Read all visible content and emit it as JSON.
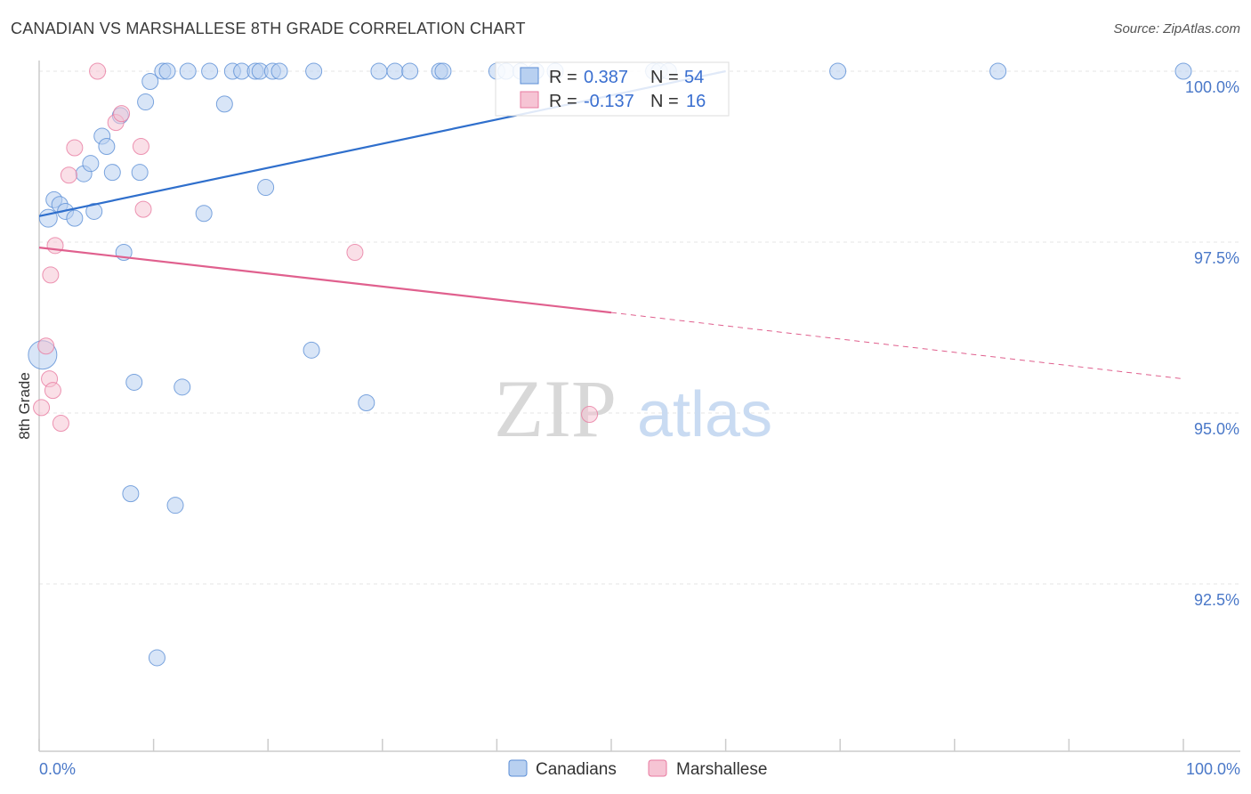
{
  "header": {
    "title": "CANADIAN VS MARSHALLESE 8TH GRADE CORRELATION CHART",
    "source": "Source: ZipAtlas.com"
  },
  "colors": {
    "blue": "#5b8ed6",
    "blue_fill": "#b8d0f0",
    "pink": "#e87aa0",
    "pink_fill": "#f6c4d4",
    "axis_text": "#4a78c8"
  },
  "legend": {
    "r_label": "R =",
    "n_label": "N =",
    "rows": [
      {
        "r": "0.387",
        "n": "54"
      },
      {
        "r": "-0.137",
        "n": "16"
      }
    ]
  },
  "bottom_legend": [
    "Canadians",
    "Marshallese"
  ],
  "watermark": {
    "zip": "ZIP",
    "atlas": "atlas"
  },
  "chart_data": {
    "type": "scatter",
    "title": "CANADIAN VS MARSHALLESE 8TH GRADE CORRELATION CHART",
    "xlabel": "",
    "ylabel": "8th Grade",
    "xlim": [
      0,
      100
    ],
    "ylim": [
      90.2,
      100.2
    ],
    "x_tick_labels": [
      "0.0%",
      "100.0%"
    ],
    "y_ticks": [
      92.5,
      95.0,
      97.5,
      100.0
    ],
    "y_tick_labels": [
      "92.5%",
      "95.0%",
      "97.5%",
      "100.0%"
    ],
    "series": [
      {
        "name": "Canadians",
        "R": 0.387,
        "N": 54,
        "trend": {
          "x0": 0,
          "y0": 97.88,
          "x1": 60,
          "y1": 100.0
        },
        "points": [
          [
            0.3,
            95.85,
            16
          ],
          [
            0.8,
            97.85,
            10
          ],
          [
            1.3,
            98.12,
            9
          ],
          [
            1.8,
            98.05,
            9
          ],
          [
            2.3,
            97.95,
            9
          ],
          [
            3.1,
            97.85,
            9
          ],
          [
            3.9,
            98.5,
            9
          ],
          [
            4.5,
            98.65,
            9
          ],
          [
            4.8,
            97.95,
            9
          ],
          [
            5.5,
            99.05,
            9
          ],
          [
            5.9,
            98.9,
            9
          ],
          [
            6.4,
            98.52,
            9
          ],
          [
            7.1,
            99.35,
            9
          ],
          [
            7.4,
            97.35,
            9
          ],
          [
            8.0,
            93.82,
            9
          ],
          [
            8.3,
            95.45,
            9
          ],
          [
            8.8,
            98.52,
            9
          ],
          [
            9.3,
            99.55,
            9
          ],
          [
            9.7,
            99.85,
            9
          ],
          [
            10.3,
            91.42,
            9
          ],
          [
            10.8,
            100.0,
            9
          ],
          [
            11.2,
            100.0,
            9
          ],
          [
            11.9,
            93.65,
            9
          ],
          [
            12.5,
            95.38,
            9
          ],
          [
            13.0,
            100.0,
            9
          ],
          [
            14.4,
            97.92,
            9
          ],
          [
            14.9,
            100.0,
            9
          ],
          [
            16.2,
            99.52,
            9
          ],
          [
            16.9,
            100.0,
            9
          ],
          [
            17.7,
            100.0,
            9
          ],
          [
            18.9,
            100.0,
            9
          ],
          [
            19.3,
            100.0,
            9
          ],
          [
            19.8,
            98.3,
            9
          ],
          [
            20.4,
            100.0,
            9
          ],
          [
            21.0,
            100.0,
            9
          ],
          [
            23.8,
            95.92,
            9
          ],
          [
            24.0,
            100.0,
            9
          ],
          [
            28.6,
            95.15,
            9
          ],
          [
            29.7,
            100.0,
            9
          ],
          [
            31.1,
            100.0,
            9
          ],
          [
            32.4,
            100.0,
            9
          ],
          [
            35.0,
            100.0,
            9
          ],
          [
            35.3,
            100.0,
            9
          ],
          [
            40.0,
            100.0,
            9
          ],
          [
            40.8,
            100.0,
            9
          ],
          [
            42.1,
            100.0,
            9
          ],
          [
            43.4,
            100.0,
            9
          ],
          [
            45.1,
            100.0,
            9
          ],
          [
            53.7,
            100.0,
            9
          ],
          [
            54.2,
            100.0,
            9
          ],
          [
            55.0,
            100.0,
            9
          ],
          [
            69.8,
            100.0,
            9
          ],
          [
            83.8,
            100.0,
            9
          ],
          [
            100.0,
            100.0,
            9
          ]
        ]
      },
      {
        "name": "Marshallese",
        "R": -0.137,
        "N": 16,
        "trend": {
          "x0": 0,
          "y0": 97.42,
          "x1": 50,
          "y1": 96.47,
          "dash_to_x": 100,
          "dash_to_y": 95.5
        },
        "points": [
          [
            0.2,
            95.08,
            9
          ],
          [
            0.6,
            95.98,
            9
          ],
          [
            0.9,
            95.5,
            9
          ],
          [
            1.0,
            97.02,
            9
          ],
          [
            1.2,
            95.33,
            9
          ],
          [
            1.4,
            97.45,
            9
          ],
          [
            1.9,
            94.85,
            9
          ],
          [
            2.6,
            98.48,
            9
          ],
          [
            3.1,
            98.88,
            9
          ],
          [
            5.1,
            100.0,
            9
          ],
          [
            6.7,
            99.25,
            9
          ],
          [
            7.2,
            99.38,
            9
          ],
          [
            8.9,
            98.9,
            9
          ],
          [
            9.1,
            97.98,
            9
          ],
          [
            27.6,
            97.35,
            9
          ],
          [
            48.1,
            94.98,
            9
          ]
        ]
      }
    ]
  }
}
